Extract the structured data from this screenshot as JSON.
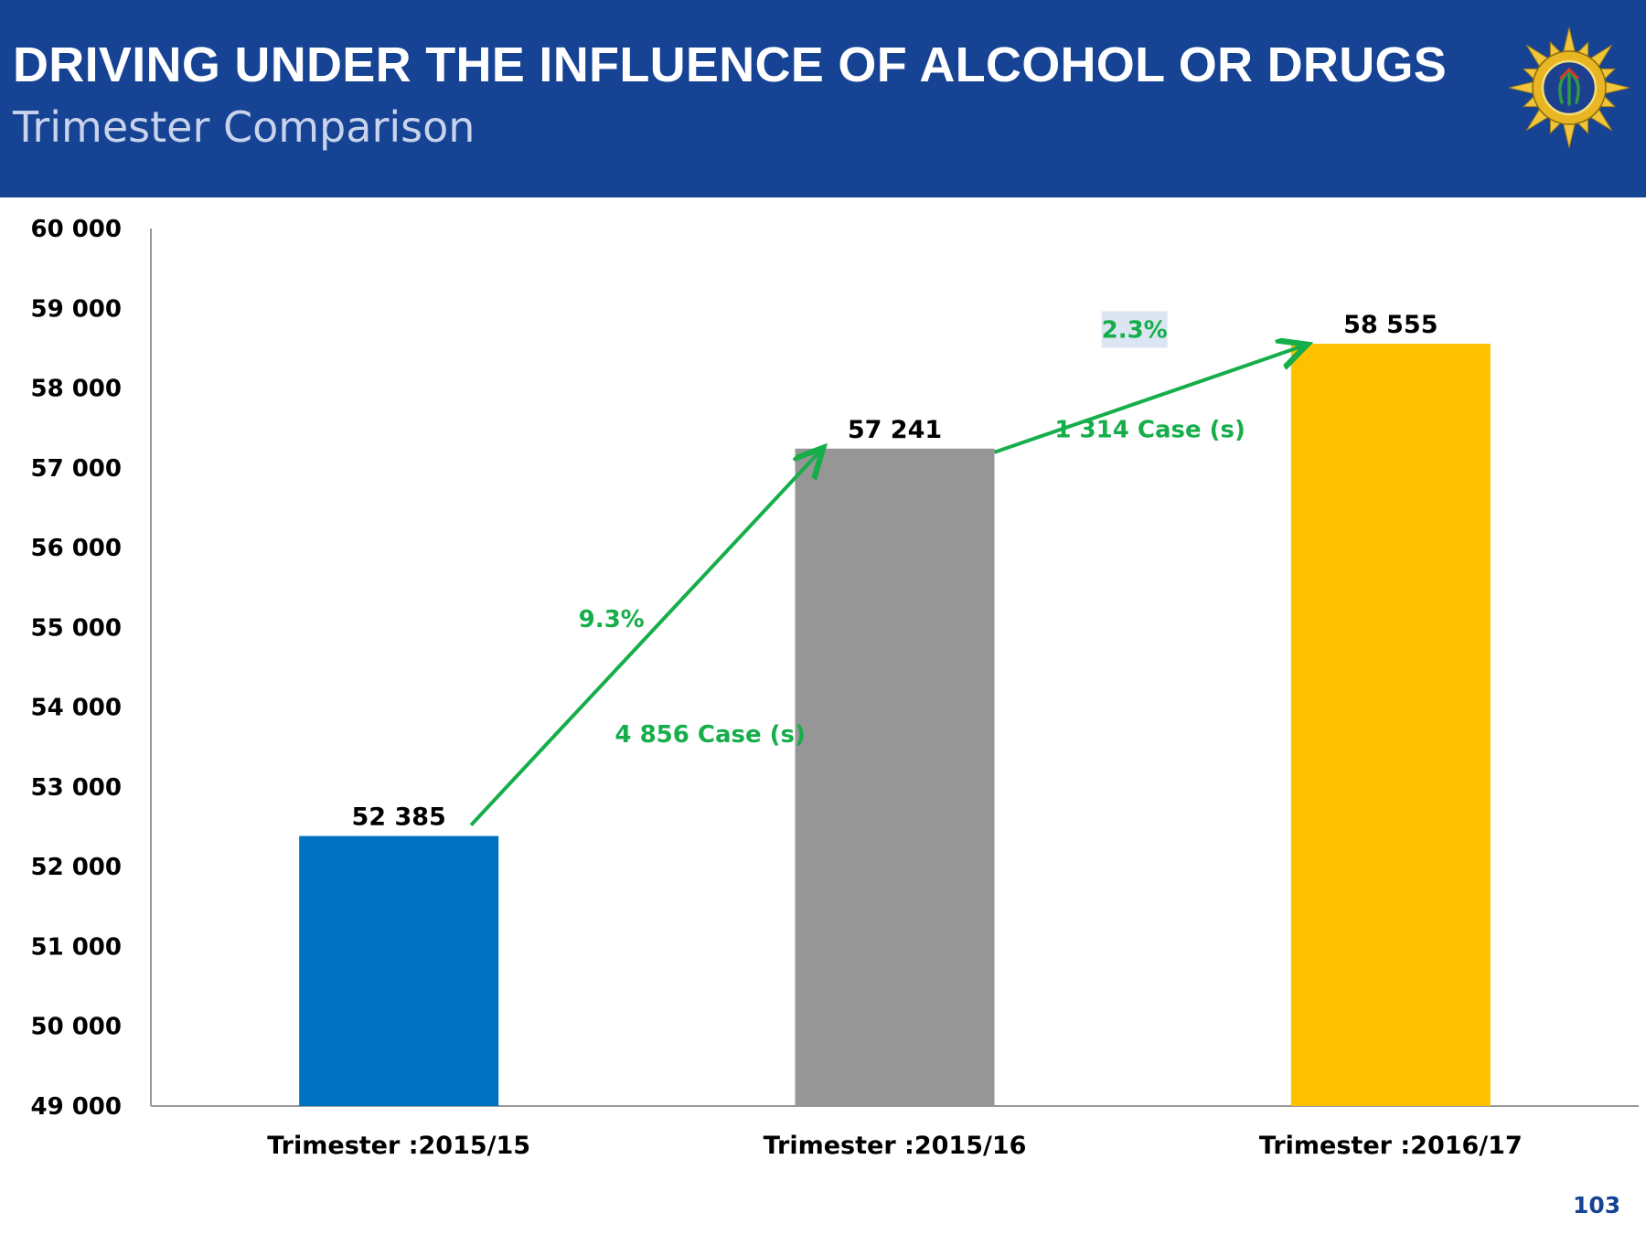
{
  "header": {
    "title": "DRIVING UNDER THE INFLUENCE OF ALCOHOL OR DRUGS",
    "subtitle": "Trimester Comparison",
    "badge": "south-african-police-service-star-emblem"
  },
  "colors": {
    "header_bg": "#164394",
    "bar_2015_15": "#0070C0",
    "bar_2015_16": "#969696",
    "bar_2016_17": "#FFC000",
    "arrow": "#15AE4A",
    "pct_box": "#DCE6F2"
  },
  "chart_data": {
    "type": "bar",
    "title": "Trimester Comparison",
    "xlabel": "",
    "ylabel": "",
    "ylim": [
      49000,
      60000
    ],
    "y_ticks": [
      49000,
      50000,
      51000,
      52000,
      53000,
      54000,
      55000,
      56000,
      57000,
      58000,
      59000,
      60000
    ],
    "y_tick_labels": [
      "49 000",
      "50 000",
      "51 000",
      "52 000",
      "53 000",
      "54 000",
      "55 000",
      "56 000",
      "57 000",
      "58 000",
      "59 000",
      "60 000"
    ],
    "grid": false,
    "categories": [
      "Trimester :2015/15",
      "Trimester :2015/16",
      "Trimester :2016/17"
    ],
    "values": [
      52385,
      57241,
      58555
    ],
    "value_labels": [
      "52 385",
      "57 241",
      "58 555"
    ],
    "bar_colors": [
      "#0070C0",
      "#969696",
      "#FFC000"
    ],
    "annotations": [
      {
        "from": 0,
        "to": 1,
        "percent": "9.3%",
        "cases": "4 856 Case (s)"
      },
      {
        "from": 1,
        "to": 2,
        "percent": "2.3%",
        "cases": "1 314 Case (s)"
      }
    ]
  },
  "footer": {
    "page_number": "103"
  }
}
